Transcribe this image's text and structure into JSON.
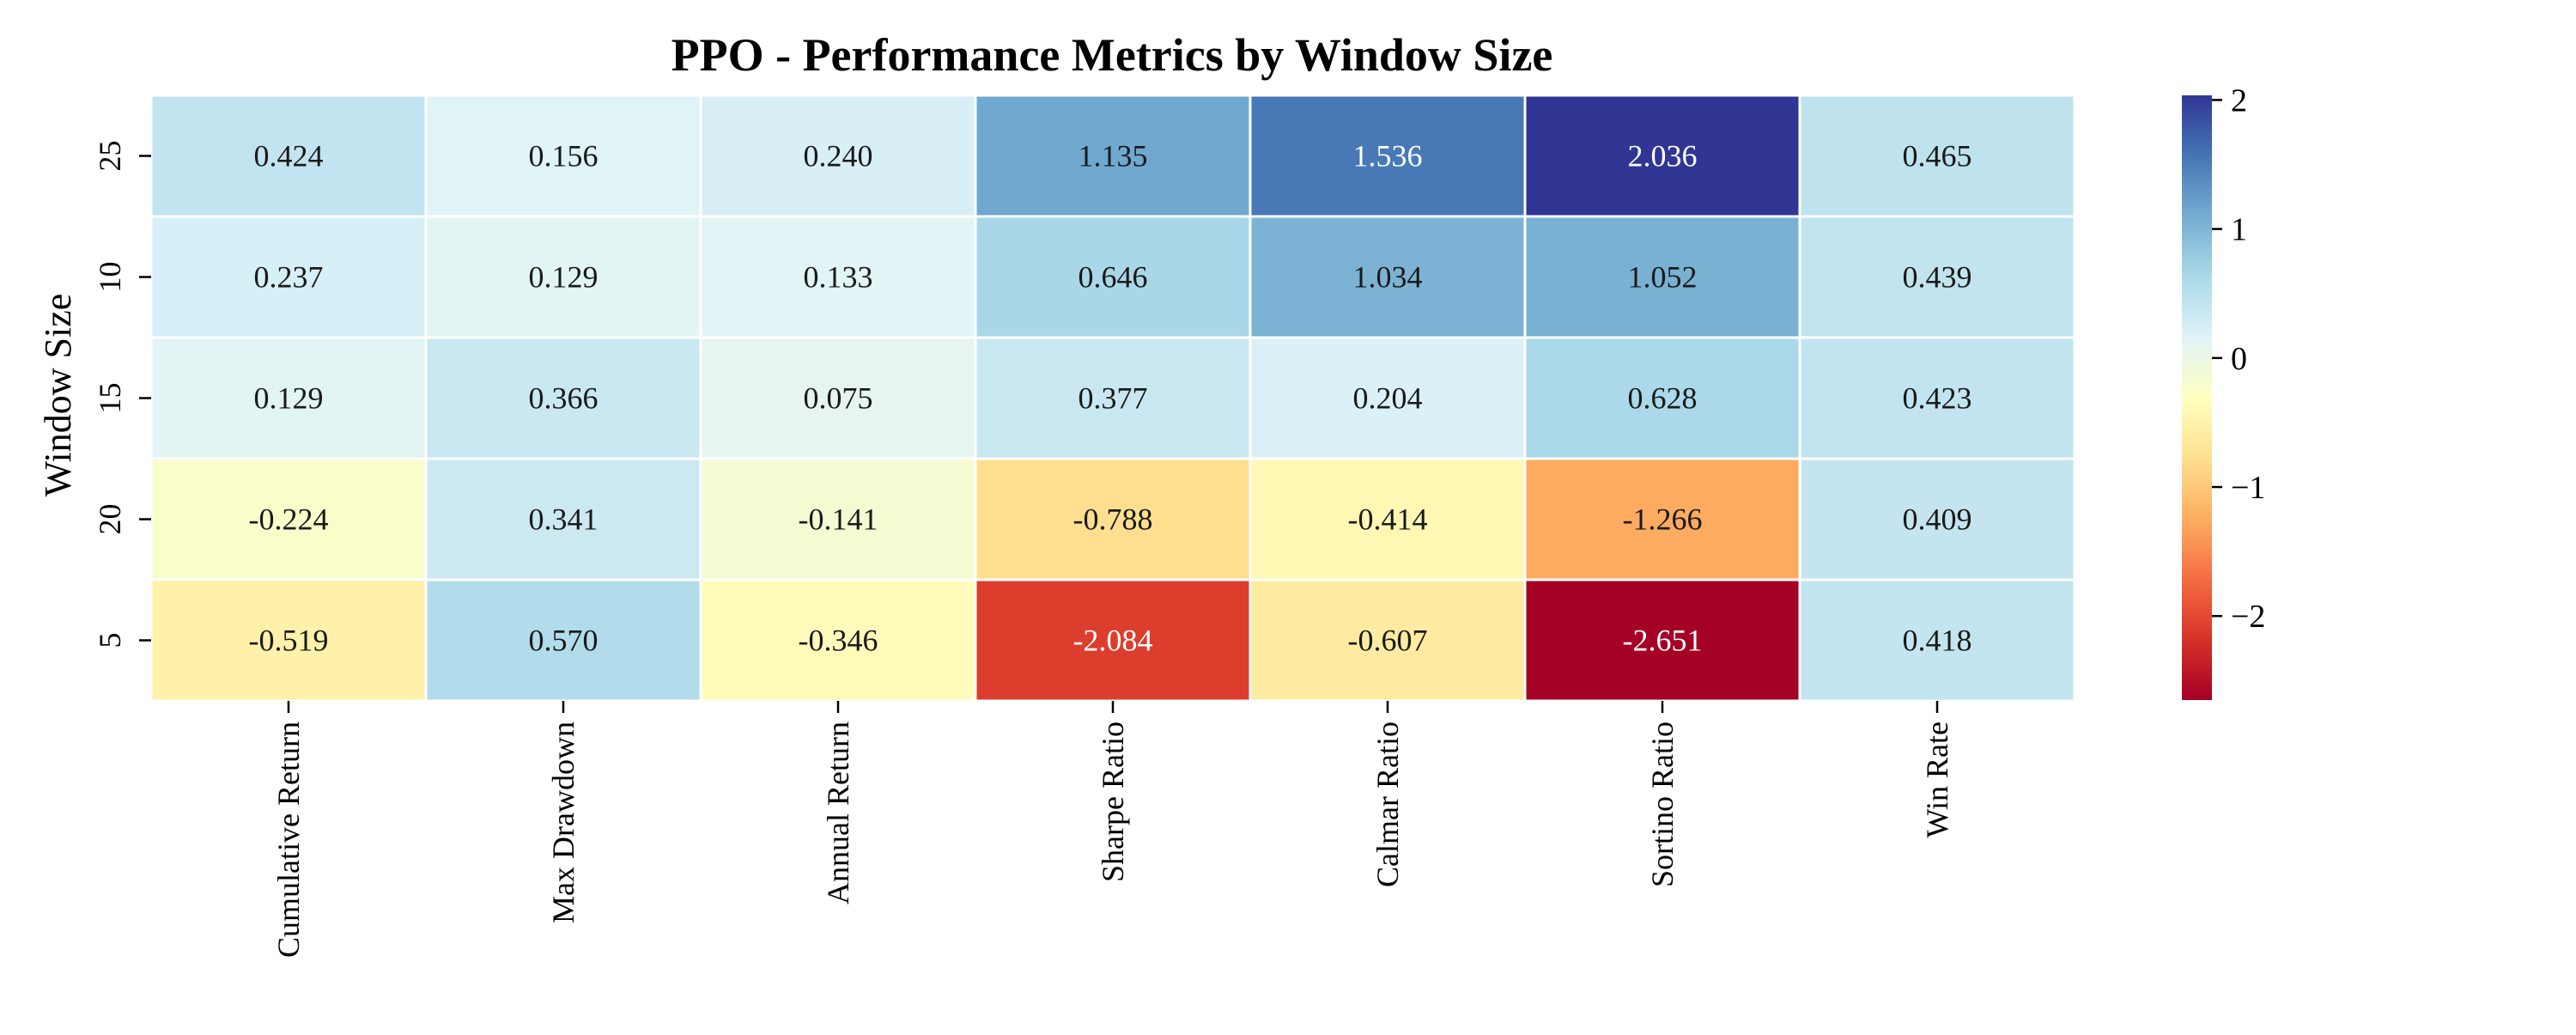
{
  "chart_data": {
    "type": "heatmap",
    "title": "PPO - Performance Metrics by Window Size",
    "ylabel": "Window Size",
    "xlabel": "",
    "columns": [
      "Cumulative Return",
      "Max Drawdown",
      "Annual Return",
      "Sharpe Ratio",
      "Calmar Ratio",
      "Sortino Ratio",
      "Win Rate"
    ],
    "rows": [
      "25",
      "10",
      "15",
      "20",
      "5"
    ],
    "values": [
      [
        0.424,
        0.156,
        0.24,
        1.135,
        1.536,
        2.036,
        0.465
      ],
      [
        0.237,
        0.129,
        0.133,
        0.646,
        1.034,
        1.052,
        0.439
      ],
      [
        0.129,
        0.366,
        0.075,
        0.377,
        0.204,
        0.628,
        0.423
      ],
      [
        -0.224,
        0.341,
        -0.141,
        -0.788,
        -0.414,
        -1.266,
        0.409
      ],
      [
        -0.519,
        0.57,
        -0.346,
        -2.084,
        -0.607,
        -2.651,
        0.418
      ]
    ],
    "cell_labels": [
      [
        "0.424",
        "0.156",
        "0.240",
        "1.135",
        "1.536",
        "2.036",
        "0.465"
      ],
      [
        "0.237",
        "0.129",
        "0.133",
        "0.646",
        "1.034",
        "1.052",
        "0.439"
      ],
      [
        "0.129",
        "0.366",
        "0.075",
        "0.377",
        "0.204",
        "0.628",
        "0.423"
      ],
      [
        "-0.224",
        "0.341",
        "-0.141",
        "-0.788",
        "-0.414",
        "-1.266",
        "0.409"
      ],
      [
        "-0.519",
        "0.570",
        "-0.346",
        "-2.084",
        "-0.607",
        "-2.651",
        "0.418"
      ]
    ],
    "colormap": "RdYlBu",
    "color_range": [
      -2.651,
      2.036
    ],
    "colorbar": {
      "ticks": [
        2,
        1,
        0,
        -1,
        -2
      ],
      "tick_labels": [
        "2",
        "1",
        "0",
        "−1",
        "−2"
      ],
      "placement": "right"
    },
    "cell_border_color": "#ffffff",
    "grid": false
  }
}
